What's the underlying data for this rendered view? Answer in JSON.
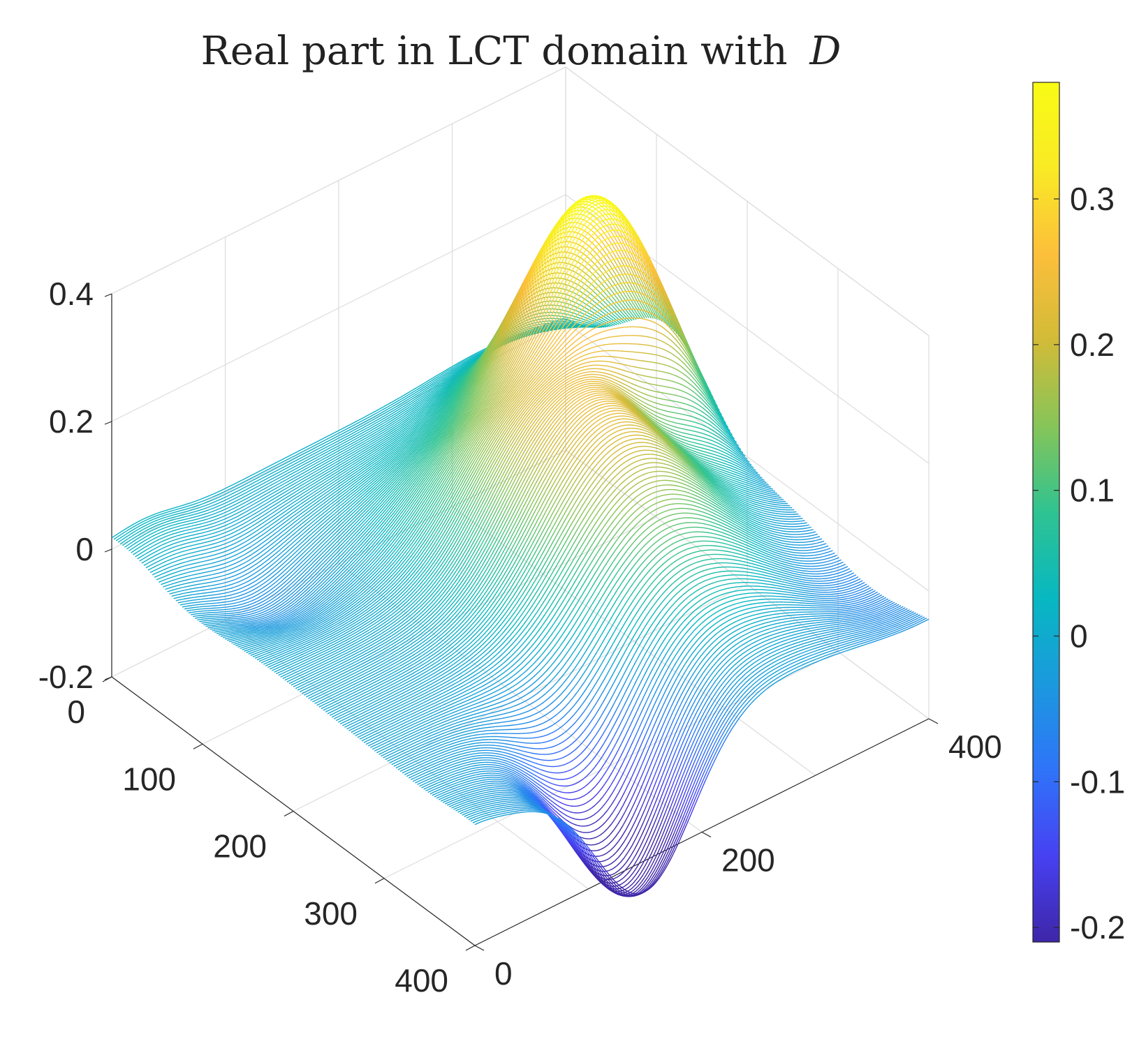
{
  "chart_data": {
    "type": "surface3d",
    "title": "Real part in LCT domain with",
    "title_symbol": "D",
    "x_axis": {
      "label": "",
      "range": [
        0,
        400
      ],
      "tick_values": [
        0,
        100,
        200,
        300,
        400
      ],
      "tick_labels": [
        "0",
        "100",
        "200",
        "300",
        "400"
      ]
    },
    "y_axis": {
      "label": "",
      "range": [
        0,
        400
      ],
      "tick_values": [
        0,
        200,
        400
      ],
      "tick_labels": [
        "0",
        "200",
        "400"
      ]
    },
    "z_axis": {
      "label": "",
      "range": [
        -0.2,
        0.4
      ],
      "tick_values": [
        -0.2,
        0,
        0.2,
        0.4
      ],
      "tick_labels": [
        "-0.2",
        "0",
        "0.2",
        "0.4"
      ]
    },
    "colorbar": {
      "range": [
        -0.21,
        0.38
      ],
      "tick_values": [
        -0.2,
        -0.1,
        0,
        0.1,
        0.2,
        0.3
      ],
      "tick_labels": [
        "-0.2",
        "-0.1",
        "0",
        "0.1",
        "0.2",
        "0.3"
      ],
      "colormap": "parula",
      "colormap_stops": [
        "#3e26a8",
        "#4741f2",
        "#2f74f9",
        "#1b99de",
        "#07b8c1",
        "#2fc391",
        "#86c559",
        "#d2bb38",
        "#fcbf3b",
        "#f9ea25",
        "#f9fb15"
      ]
    },
    "surface_features": {
      "peak_value": 0.38,
      "peak_location": [
        130,
        330
      ],
      "trough_value": -0.21,
      "trough_location": [
        380,
        150
      ],
      "corner_values": {
        "x0_y0": 0.01,
        "x400_y0": 0.0,
        "x400_y400": -0.02,
        "x0_y400": -0.02
      }
    },
    "grid": true,
    "style": "mesh"
  }
}
